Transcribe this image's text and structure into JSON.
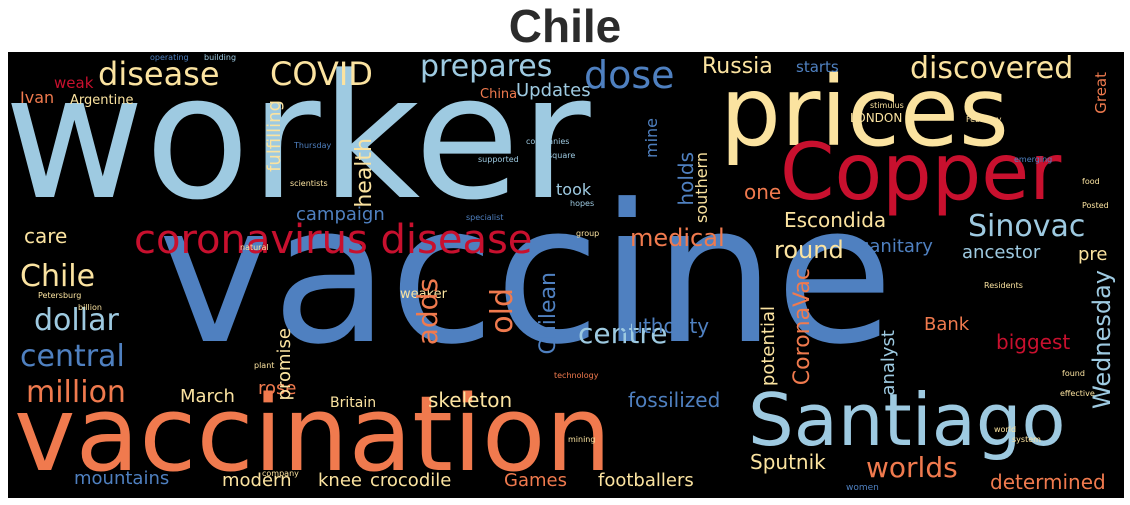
{
  "title": "Chile",
  "colors": {
    "light_blue": "#9ecae1",
    "blue": "#4f80c0",
    "red": "#c8102e",
    "orange": "#f07a4e",
    "cream": "#fbe3a0",
    "background": "#000000"
  },
  "words": {
    "worker": "worker",
    "vaccine": "vaccine",
    "vaccination": "vaccination",
    "prices": "prices",
    "copper": "Copper",
    "santiago": "Santiago",
    "coronavirus_disease": "coronavirus disease",
    "disease": "disease",
    "covid": "COVID",
    "dose": "dose",
    "prepares": "prepares",
    "discovered": "discovered",
    "russia": "Russia",
    "updates": "Updates",
    "sinovac": "Sinovac",
    "chile": "Chile",
    "dollar": "dollar",
    "central": "central",
    "million": "million",
    "centre": "centre",
    "medical": "medical",
    "round": "round",
    "escondida": "Escondida",
    "sanitary": "sanitary",
    "ancestor": "ancestor",
    "worlds": "worlds",
    "sputnik": "Sputnik",
    "adds": "adds",
    "old": "old",
    "chilean": "Chilean",
    "coronavac": "CoronaVac",
    "wednesday": "Wednesday",
    "health": "health",
    "holds": "holds",
    "fulfilling": "fulfilling",
    "campaign": "campaign",
    "care": "care",
    "one": "one",
    "authority": "authority",
    "biggest": "biggest",
    "fossilized": "fossilized",
    "skeleton": "skeleton",
    "rose": "rose",
    "march": "March",
    "mountains": "mountains",
    "modern": "modern",
    "knee": "knee",
    "crocodile": "crocodile",
    "games": "Games",
    "footballers": "footballers",
    "determined": "determined",
    "promise": "promise",
    "analyst": "analyst",
    "potential": "potential",
    "bank": "Bank",
    "pre": "pre",
    "ivan": "Ivan",
    "weak": "weak",
    "argentine": "Argentine",
    "took": "took",
    "mine": "mine",
    "southern": "southern",
    "starts": "starts",
    "great": "Great",
    "britain": "Britain",
    "china": "China",
    "weaker": "weaker",
    "london": "LONDON",
    "one_small": "operating",
    "building": "building",
    "thursday": "Thursday",
    "february": "February",
    "scientists": "scientists",
    "technology": "technology",
    "companies": "companies",
    "supported": "supported",
    "square": "square",
    "residents": "Residents",
    "petersburg": "Petersburg",
    "billion": "billion",
    "women": "women",
    "plant": "plant",
    "company": "company",
    "natural": "natural",
    "specialist": "specialist",
    "emerging": "emerging",
    "found": "found",
    "effective": "effective",
    "system": "system",
    "world": "world",
    "mining": "mining",
    "posted": "Posted",
    "food": "food",
    "stimulus": "stimulus",
    "hopes": "hopes",
    "group": "group"
  }
}
